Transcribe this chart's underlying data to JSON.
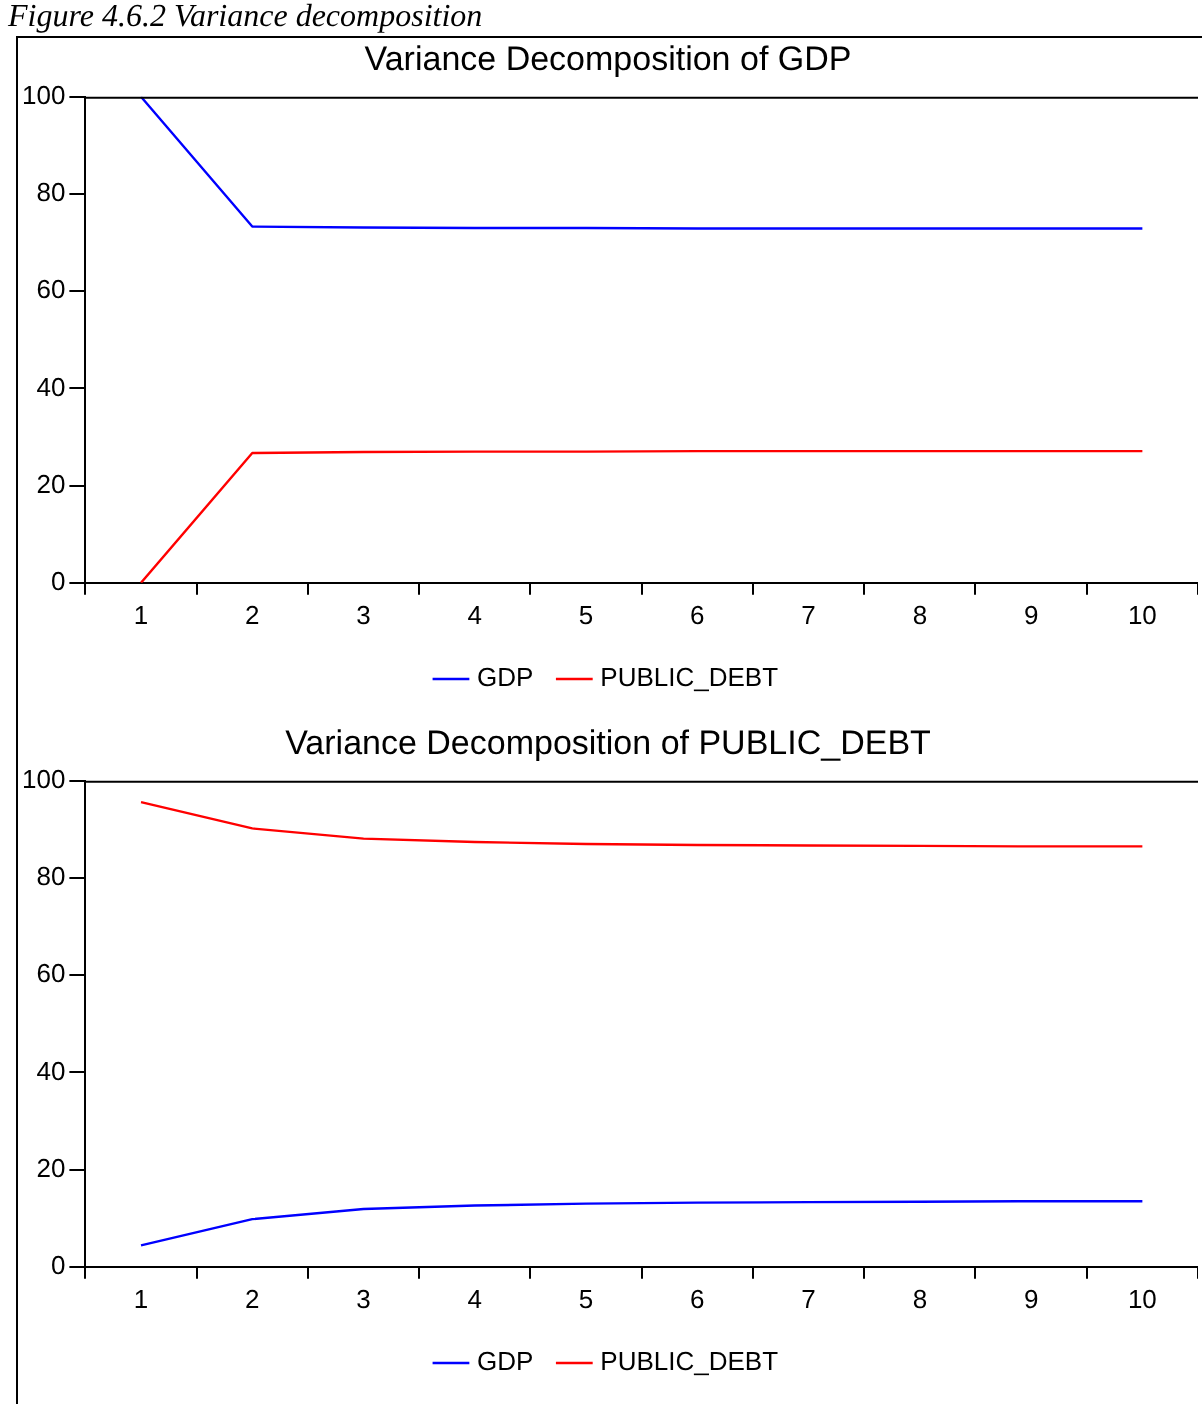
{
  "chart_data": [
    {
      "type": "line",
      "title": "Variance Decomposition of GDP",
      "categories": [
        "1",
        "2",
        "3",
        "4",
        "5",
        "6",
        "7",
        "8",
        "9",
        "10"
      ],
      "series": [
        {
          "name": "GDP",
          "color": "#0000ff",
          "values": [
            100,
            73.3,
            73.1,
            73.0,
            73.0,
            72.9,
            72.9,
            72.9,
            72.9,
            72.9
          ]
        },
        {
          "name": "PUBLIC_DEBT",
          "color": "#ff0000",
          "values": [
            0,
            26.7,
            26.9,
            27.0,
            27.0,
            27.1,
            27.1,
            27.1,
            27.1,
            27.1
          ]
        }
      ],
      "ylim": [
        0,
        100
      ],
      "yticks": [
        0,
        20,
        40,
        60,
        80,
        100
      ],
      "grid": false,
      "legend": "bottom",
      "marker": "none",
      "line_style": "solid",
      "annotations": [
        "Figure 4.6.2 Variance decomposition"
      ]
    },
    {
      "type": "line",
      "title": "Variance Decomposition of PUBLIC_DEBT",
      "categories": [
        "1",
        "2",
        "3",
        "4",
        "5",
        "6",
        "7",
        "8",
        "9",
        "10"
      ],
      "series": [
        {
          "name": "GDP",
          "color": "#0000ff",
          "values": [
            4.4,
            9.8,
            11.9,
            12.6,
            13.0,
            13.2,
            13.3,
            13.4,
            13.5,
            13.5
          ]
        },
        {
          "name": "PUBLIC_DEBT",
          "color": "#ff0000",
          "values": [
            95.6,
            90.2,
            88.1,
            87.4,
            87.0,
            86.8,
            86.7,
            86.6,
            86.5,
            86.5
          ]
        }
      ],
      "ylim": [
        0,
        100
      ],
      "yticks": [
        0,
        20,
        40,
        60,
        80,
        100
      ],
      "grid": false,
      "legend": "bottom",
      "marker": "none",
      "line_style": "solid"
    }
  ]
}
